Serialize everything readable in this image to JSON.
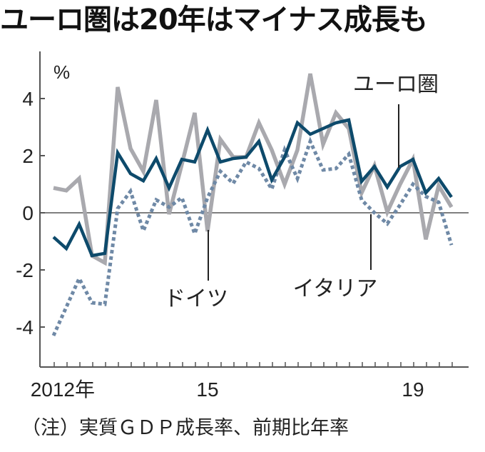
{
  "chart_data": {
    "type": "line",
    "title": "ユーロ圏は20年はマイナス成長も",
    "ylabel": "%",
    "xlabel": "",
    "ylim": [
      -5.5,
      5.5
    ],
    "yticks": [
      4,
      2,
      0,
      -2,
      -4
    ],
    "ytick_labels": [
      "4",
      "2",
      "0",
      "-2",
      "-4"
    ],
    "x": [
      "2012Q1",
      "2012Q2",
      "2012Q3",
      "2012Q4",
      "2013Q1",
      "2013Q2",
      "2013Q3",
      "2013Q4",
      "2014Q1",
      "2014Q2",
      "2014Q3",
      "2014Q4",
      "2015Q1",
      "2015Q2",
      "2015Q3",
      "2015Q4",
      "2016Q1",
      "2016Q2",
      "2016Q3",
      "2016Q4",
      "2017Q1",
      "2017Q2",
      "2017Q3",
      "2017Q4",
      "2018Q1",
      "2018Q2",
      "2018Q3",
      "2018Q4",
      "2019Q1",
      "2019Q2",
      "2019Q3",
      "2019Q4"
    ],
    "xtick_labels": [
      {
        "index": 1,
        "label": "2012年"
      },
      {
        "index": 12,
        "label": "15"
      },
      {
        "index": 28,
        "label": "19"
      }
    ],
    "grid": false,
    "series": [
      {
        "name": "ドイツ",
        "color": "#a9a9ae",
        "style": "solid",
        "values": [
          0.87,
          0.78,
          1.2,
          -1.5,
          -1.75,
          4.4,
          2.25,
          1.45,
          3.95,
          -0.05,
          1.7,
          3.5,
          -0.65,
          2.57,
          1.95,
          1.95,
          3.15,
          2.2,
          1.0,
          2.2,
          4.87,
          2.4,
          3.5,
          2.95,
          0.7,
          1.65,
          0.03,
          1.0,
          1.87,
          -0.93,
          0.95,
          0.2
        ]
      },
      {
        "name": "イタリア",
        "color": "#6f89a6",
        "style": "dashed",
        "values": [
          -4.3,
          -3.3,
          -2.3,
          -3.15,
          -3.2,
          0.15,
          0.75,
          -0.63,
          0.45,
          0.2,
          0.53,
          -0.73,
          0.53,
          1.45,
          1.03,
          1.78,
          1.55,
          0.83,
          2.2,
          1.2,
          2.5,
          1.5,
          1.55,
          2.05,
          0.45,
          0.0,
          -0.38,
          0.28,
          1.0,
          0.57,
          0.37,
          -1.13
        ]
      },
      {
        "name": "ユーロ圏",
        "color": "#0d4a6b",
        "style": "solid",
        "values": [
          -0.85,
          -1.25,
          -0.4,
          -1.5,
          -1.42,
          2.1,
          1.37,
          1.12,
          1.9,
          0.87,
          1.87,
          1.78,
          2.9,
          1.78,
          1.9,
          1.95,
          2.5,
          1.15,
          1.95,
          3.15,
          2.75,
          2.95,
          3.15,
          3.25,
          1.1,
          1.62,
          0.9,
          1.62,
          1.87,
          0.7,
          1.2,
          0.55
        ]
      }
    ],
    "annotations": [
      {
        "text": "ユーロ圏",
        "series": "ユーロ圏",
        "index": 27
      },
      {
        "text": "ドイツ",
        "series": "ドイツ",
        "index": 12
      },
      {
        "text": "イタリア",
        "series": "イタリア",
        "index": 25
      }
    ],
    "note": "（注）実質ＧＤＰ成長率、前期比年率"
  }
}
